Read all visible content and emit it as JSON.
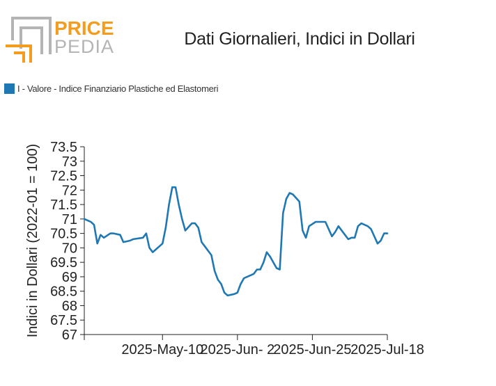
{
  "logo": {
    "word1": "PRICE",
    "word2": "PEDIA"
  },
  "colors": {
    "series": "#1f77b4",
    "logo_orange": "#f39c1f",
    "logo_gray": "#b4b4b4"
  },
  "chart_data": {
    "type": "line",
    "title": "Dati Giornalieri, Indici in Dollari",
    "ylabel": "Indici in Dollari (2022-01 = 100)",
    "xlabel": "",
    "ylim": [
      67,
      73.5
    ],
    "xlim": [
      "2025-04-16",
      "2025-07-18"
    ],
    "yticks": [
      "73.5",
      "73",
      "72.5",
      "72",
      "71.5",
      "71",
      "70.5",
      "70",
      "69.5",
      "69",
      "68.5",
      "68",
      "67.5",
      "67"
    ],
    "xticks": [
      "2025-May-10",
      "2025-Jun- 2",
      "2025-Jun-25",
      "2025-Jul-18"
    ],
    "x_tick_dates": [
      "2025-05-10",
      "2025-06-02",
      "2025-06-25",
      "2025-07-18"
    ],
    "legend": {
      "position": "top-left"
    },
    "grid": false,
    "series": [
      {
        "name": "I - Valore - Indice Finanziario Plastiche ed Elastomeri",
        "x": [
          "2025-04-16",
          "2025-04-18",
          "2025-04-19",
          "2025-04-20",
          "2025-04-21",
          "2025-04-22",
          "2025-04-24",
          "2025-04-25",
          "2025-04-27",
          "2025-04-28",
          "2025-04-30",
          "2025-05-01",
          "2025-05-04",
          "2025-05-05",
          "2025-05-06",
          "2025-05-07",
          "2025-05-08",
          "2025-05-10",
          "2025-05-11",
          "2025-05-12",
          "2025-05-13",
          "2025-05-14",
          "2025-05-15",
          "2025-05-16",
          "2025-05-17",
          "2025-05-19",
          "2025-05-20",
          "2025-05-21",
          "2025-05-22",
          "2025-05-23",
          "2025-05-24",
          "2025-05-25",
          "2025-05-26",
          "2025-05-27",
          "2025-05-28",
          "2025-05-29",
          "2025-05-30",
          "2025-06-01",
          "2025-06-02",
          "2025-06-03",
          "2025-06-04",
          "2025-06-05",
          "2025-06-07",
          "2025-06-08",
          "2025-06-09",
          "2025-06-10",
          "2025-06-11",
          "2025-06-12",
          "2025-06-14",
          "2025-06-15",
          "2025-06-16",
          "2025-06-17",
          "2025-06-18",
          "2025-06-19",
          "2025-06-21",
          "2025-06-22",
          "2025-06-23",
          "2025-06-24",
          "2025-06-26",
          "2025-06-27",
          "2025-06-28",
          "2025-06-29",
          "2025-07-01",
          "2025-07-02",
          "2025-07-03",
          "2025-07-05",
          "2025-07-06",
          "2025-07-07",
          "2025-07-08",
          "2025-07-09",
          "2025-07-10",
          "2025-07-12",
          "2025-07-13",
          "2025-07-15",
          "2025-07-16",
          "2025-07-17",
          "2025-07-18"
        ],
        "values": [
          71.0,
          70.9,
          70.8,
          70.15,
          70.45,
          70.35,
          70.5,
          70.5,
          70.45,
          70.2,
          70.25,
          70.3,
          70.35,
          70.5,
          70.0,
          69.85,
          69.95,
          70.15,
          70.7,
          71.5,
          72.1,
          72.1,
          71.5,
          71.0,
          70.6,
          70.85,
          70.85,
          70.7,
          70.2,
          70.05,
          69.9,
          69.75,
          69.2,
          68.9,
          68.75,
          68.45,
          68.35,
          68.4,
          68.45,
          68.75,
          68.95,
          69.0,
          69.1,
          69.25,
          69.25,
          69.5,
          69.85,
          69.7,
          69.3,
          69.25,
          71.2,
          71.7,
          71.9,
          71.85,
          71.6,
          70.6,
          70.35,
          70.75,
          70.9,
          70.9,
          70.9,
          70.9,
          70.4,
          70.55,
          70.75,
          70.45,
          70.3,
          70.35,
          70.35,
          70.75,
          70.85,
          70.75,
          70.65,
          70.15,
          70.25,
          70.5,
          70.5
        ]
      }
    ]
  }
}
